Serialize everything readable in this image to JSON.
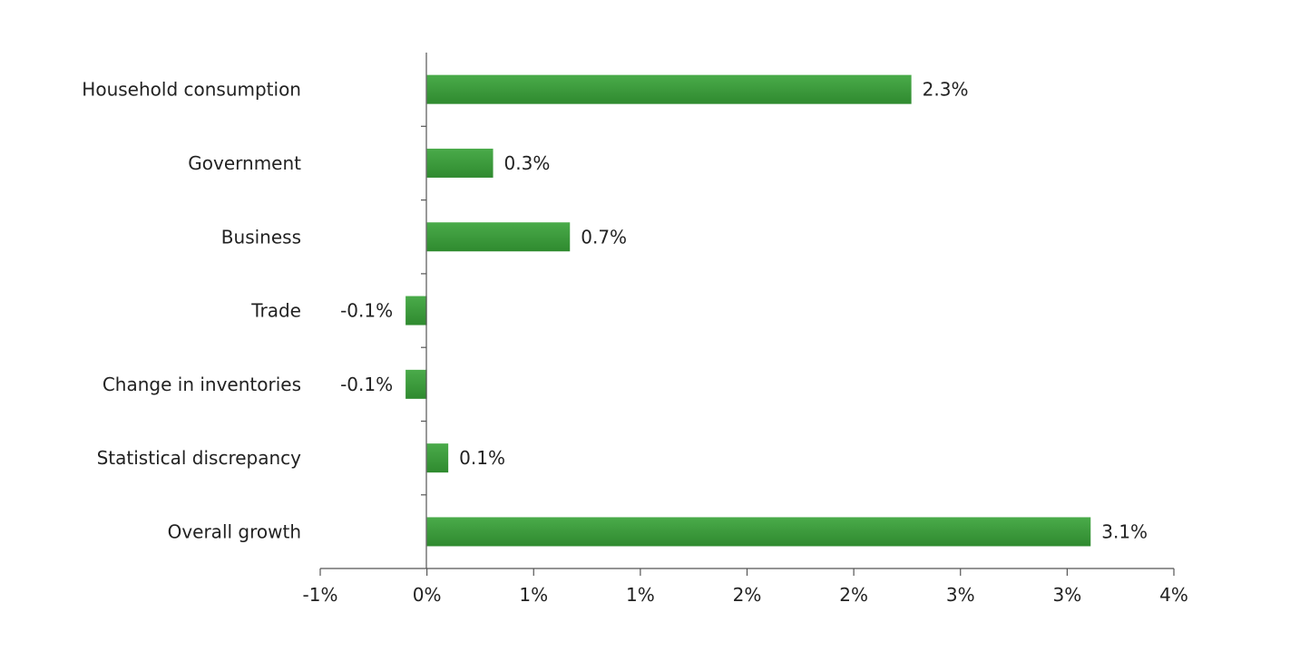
{
  "chart_data": {
    "type": "bar",
    "orientation": "horizontal",
    "categories": [
      "Household consumption",
      "Government",
      "Business",
      "Trade",
      "Change in inventories",
      "Statistical discrepancy",
      "Overall growth"
    ],
    "values": [
      2.27,
      0.31,
      0.67,
      -0.1,
      -0.1,
      0.1,
      3.11
    ],
    "value_labels": [
      "2.3%",
      "0.3%",
      "0.7%",
      "-0.1%",
      "-0.1%",
      "0.1%",
      "3.1%"
    ],
    "x_ticks": [
      -0.5,
      0,
      0.5,
      1,
      1.5,
      2,
      2.5,
      3,
      3.5
    ],
    "x_tick_labels": [
      "-1%",
      "0%",
      "1%",
      "1%",
      "2%",
      "2%",
      "3%",
      "3%",
      "4%"
    ],
    "xlim": [
      -0.5,
      3.5
    ],
    "title": "",
    "xlabel": "",
    "ylabel": "",
    "grid": false,
    "legend": "none",
    "bar_color": "#3a9a3a"
  }
}
